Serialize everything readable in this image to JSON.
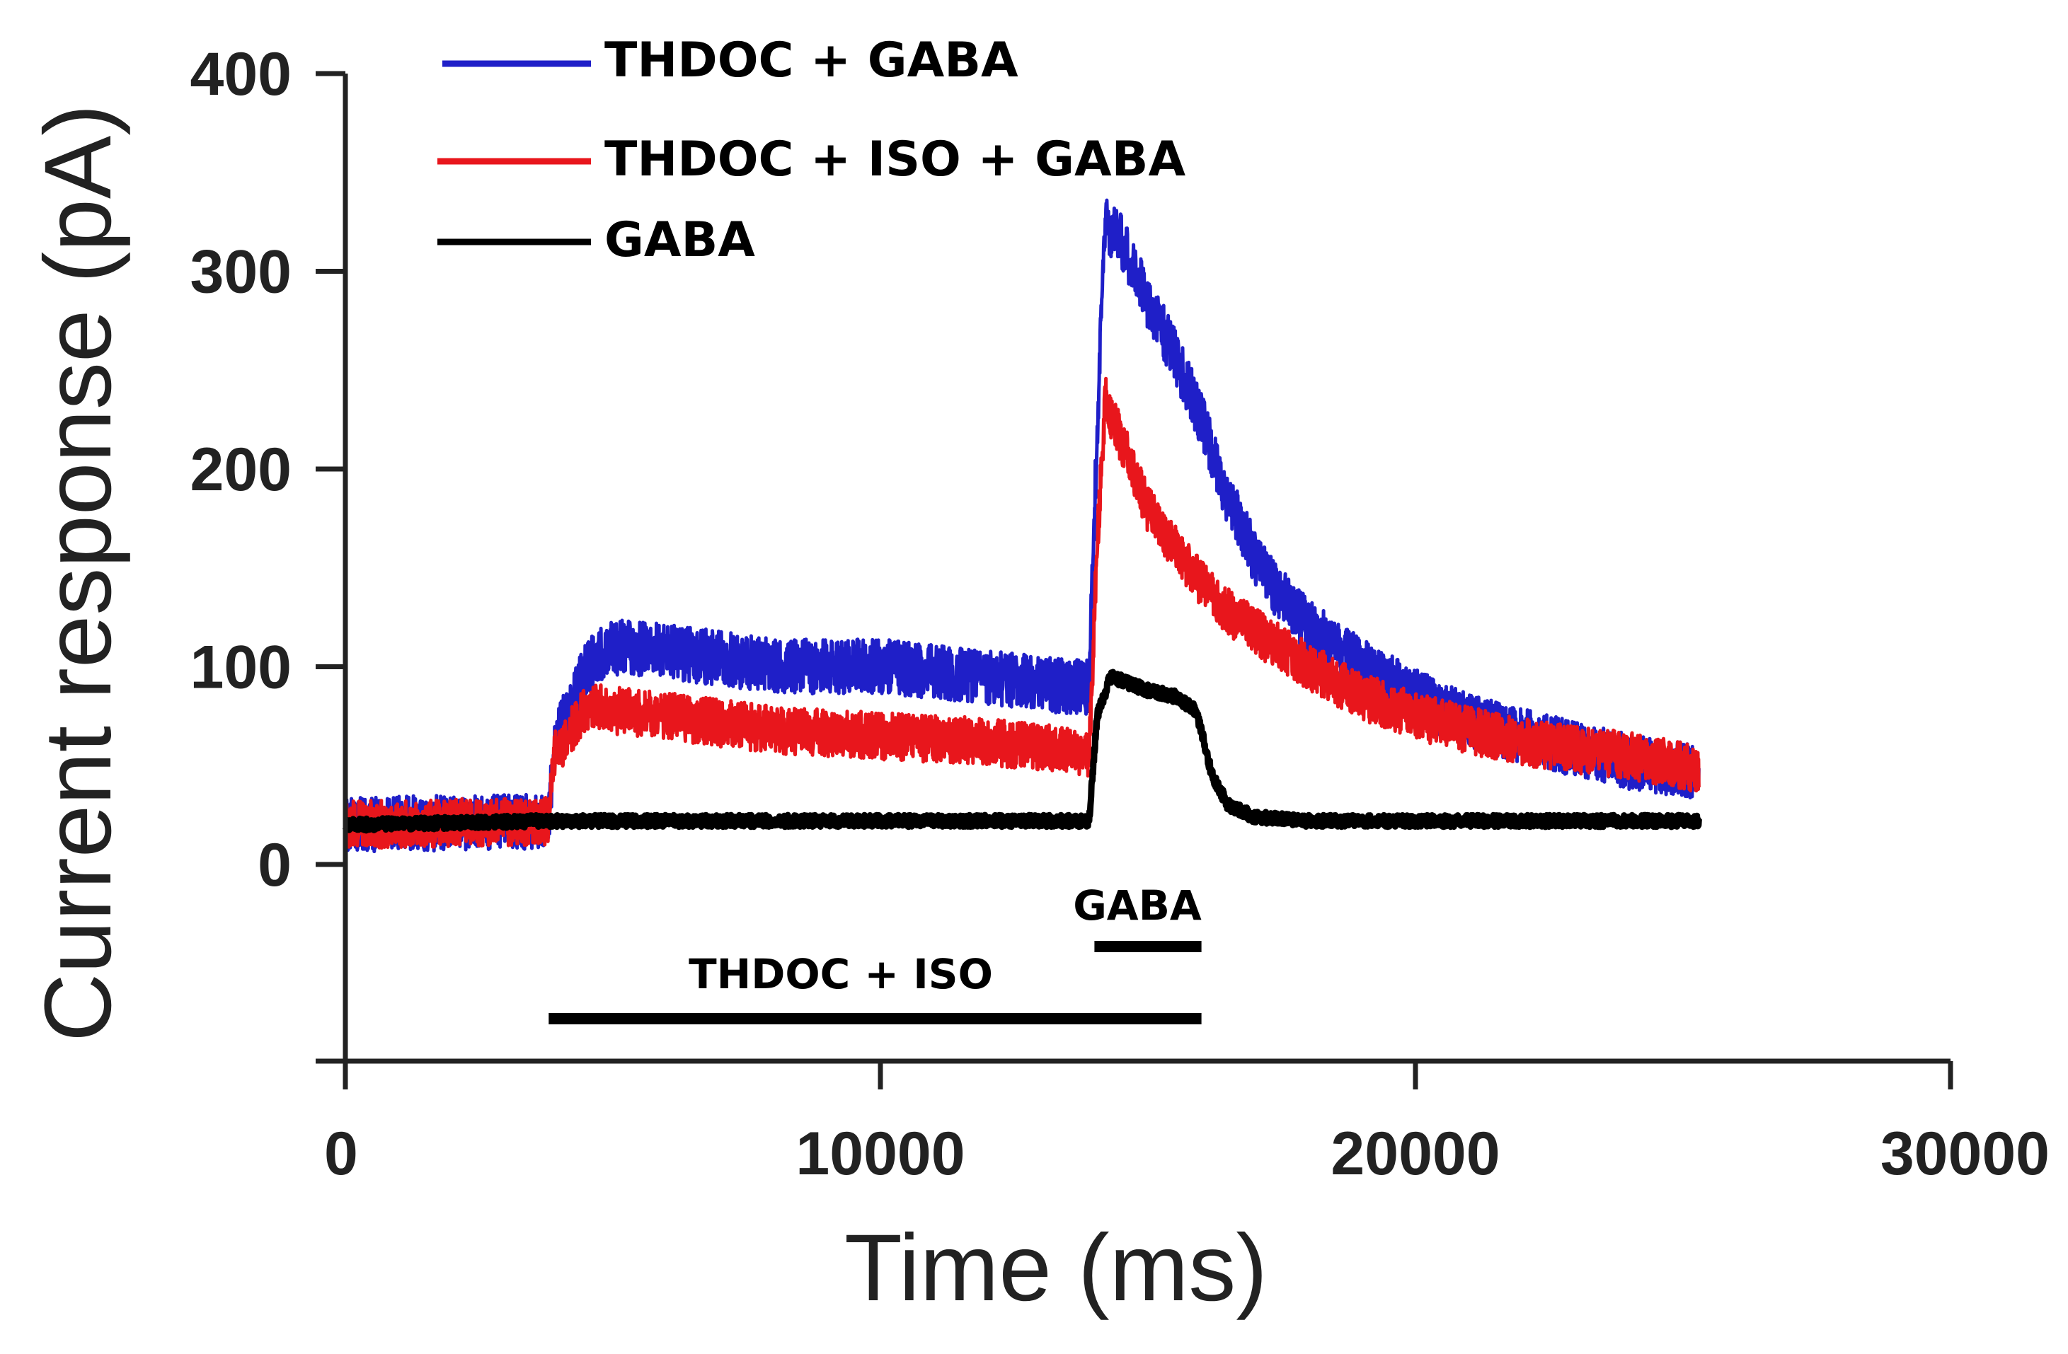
{
  "chart_data": {
    "type": "line",
    "title": "",
    "xlabel": "Time (ms)",
    "ylabel": "Current response (pA)",
    "xlim": [
      0,
      30000
    ],
    "ylim": [
      -100,
      400
    ],
    "xticks": [
      0,
      10000,
      20000,
      30000
    ],
    "xtick_labels": [
      "0",
      "10000",
      "20000",
      "30000"
    ],
    "yticks": [
      0,
      100,
      200,
      300,
      400
    ],
    "ytick_labels": [
      "0",
      "100",
      "200",
      "300",
      "400"
    ],
    "grid": false,
    "legend_position": "top-left",
    "series": [
      {
        "name": "THDOC + GABA",
        "color": "#1f1fc8",
        "noise": 14,
        "x": [
          0,
          3800,
          3900,
          4500,
          5000,
          6000,
          8000,
          10000,
          12000,
          13500,
          13900,
          14050,
          14200,
          14500,
          15000,
          15500,
          16000,
          16500,
          17000,
          17500,
          18000,
          19000,
          20000,
          21000,
          22000,
          23000,
          24000,
          25000,
          25300
        ],
        "y": [
          20,
          22,
          60,
          100,
          110,
          108,
          100,
          100,
          95,
          90,
          90,
          220,
          325,
          315,
          285,
          258,
          225,
          185,
          155,
          135,
          120,
          100,
          85,
          72,
          65,
          58,
          52,
          48,
          46
        ]
      },
      {
        "name": "THDOC + ISO + GABA",
        "color": "#e8161c",
        "noise": 12,
        "x": [
          0,
          3800,
          3900,
          4500,
          5000,
          6000,
          8000,
          10000,
          12000,
          13500,
          13900,
          14050,
          14200,
          14500,
          15000,
          15500,
          16000,
          16500,
          17000,
          18000,
          19000,
          20000,
          21000,
          22000,
          23000,
          24000,
          25000,
          25300
        ],
        "y": [
          20,
          22,
          55,
          80,
          78,
          75,
          68,
          65,
          62,
          58,
          55,
          160,
          235,
          215,
          180,
          160,
          142,
          128,
          118,
          100,
          85,
          75,
          68,
          62,
          58,
          55,
          50,
          48
        ]
      },
      {
        "name": "GABA",
        "color": "#000000",
        "noise": 3,
        "x": [
          0,
          3800,
          3900,
          6000,
          10000,
          13500,
          13900,
          14050,
          14300,
          15000,
          15500,
          15900,
          16200,
          16500,
          17000,
          18000,
          20000,
          25300
        ],
        "y": [
          20,
          22,
          22,
          22,
          22,
          22,
          22,
          75,
          95,
          88,
          85,
          78,
          45,
          30,
          24,
          22,
          22,
          22
        ]
      }
    ],
    "annotations": [
      {
        "label": "GABA",
        "start": 14000,
        "end": 16000
      },
      {
        "label": "THDOC + ISO",
        "start": 3800,
        "end": 16000
      }
    ]
  }
}
